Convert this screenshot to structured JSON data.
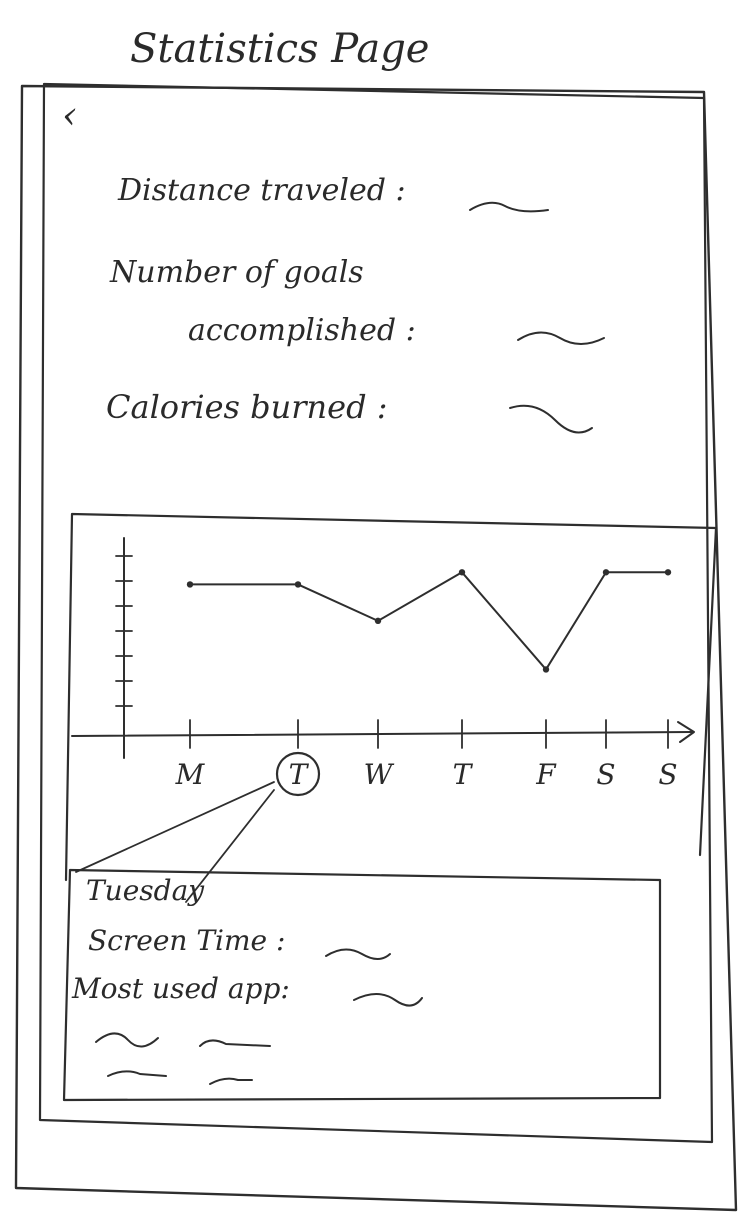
{
  "page_title": "Statistics Page",
  "back_label": "‹",
  "stats": {
    "distance_label": "Distance traveled :",
    "goals_label_line1": "Number of goals",
    "goals_label_line2": "accomplished :",
    "calories_label": "Calories burned :"
  },
  "chart_data": {
    "type": "line",
    "categories": [
      "M",
      "T",
      "W",
      "T",
      "F",
      "S",
      "S"
    ],
    "values": [
      5.5,
      5.5,
      4.0,
      6.0,
      2.0,
      6.0,
      6.0
    ],
    "ylim": [
      0,
      7
    ],
    "selected_category_index": 1
  },
  "detail": {
    "day_title": "Tuesday",
    "screen_time_label": "Screen Time :",
    "most_used_app_label": "Most used app:"
  },
  "colors": {
    "ink": "#2e2e2e",
    "paper": "#ffffff"
  }
}
